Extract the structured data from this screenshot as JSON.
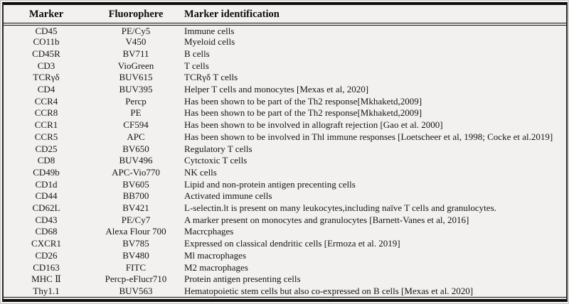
{
  "colors": {
    "background": "#f2f1ef",
    "rule": "#0e0e0e",
    "text": "#151515",
    "outer_edge": "#c6c5c3"
  },
  "table": {
    "columns": [
      {
        "key": "marker",
        "label": "Marker",
        "align": "center"
      },
      {
        "key": "fluorophore",
        "label": "Fluorophere",
        "align": "center"
      },
      {
        "key": "identification",
        "label": "Marker identification",
        "align": "left"
      }
    ],
    "rows": [
      {
        "marker": "CD45",
        "fluorophore": "PE/Cy5",
        "identification": "Immune cells"
      },
      {
        "marker": "CO11b",
        "fluorophore": "V450",
        "identification": "Myeloid cells"
      },
      {
        "marker": "CD45R",
        "fluorophore": "BV711",
        "identification": "B cells"
      },
      {
        "marker": "CD3",
        "fluorophore": "VioGreen",
        "identification": "T cells"
      },
      {
        "marker": "TCRγδ",
        "fluorophore": "BUV615",
        "identification": "TCRγδ T cells"
      },
      {
        "marker": "CD4",
        "fluorophore": "BUV395",
        "identification": "Helper T cells and monocytes [Mexas et al, 2020]"
      },
      {
        "marker": "CCR4",
        "fluorophore": "Percp",
        "identification": "Has been shown to be part of the Th2 response[Mkhaketd,2009]"
      },
      {
        "marker": "CCR8",
        "fluorophore": "PE",
        "identification": "Has been shown to be part of the Th2 response[Mkhaketd,2009]"
      },
      {
        "marker": "CCR1",
        "fluorophore": "CF594",
        "identification": "Has been shown to be involved in allograft rejection [Gao et al. 2000]"
      },
      {
        "marker": "CCR5",
        "fluorophore": "APC",
        "identification": "Has been shown to be involved in Thl immune responses [Loetscheer et al, 1998; Cocke et al.2019]"
      },
      {
        "marker": "CD25",
        "fluorophore": "BV650",
        "identification": "Regulatory T cells"
      },
      {
        "marker": "CD8",
        "fluorophore": "BUV496",
        "identification": "Cytctoxic T cells"
      },
      {
        "marker": "CD49b",
        "fluorophore": "APC-Vio770",
        "identification": "NK cells"
      },
      {
        "marker": "CD1d",
        "fluorophore": "BV605",
        "identification": "Lipid and non-protein antigen precenting cells"
      },
      {
        "marker": "CD44",
        "fluorophore": "BB700",
        "identification": "Activated immune cells"
      },
      {
        "marker": "CD62L",
        "fluorophore": "BV421",
        "identification": "L-selectin.lt is present on many leukocytes,including naïve T cells and granulocytes."
      },
      {
        "marker": "CD43",
        "fluorophore": "PE/Cy7",
        "identification": "A marker present on monocytes and granulocytes [Barnett-Vanes et al, 2016]"
      },
      {
        "marker": "CD68",
        "fluorophore": "Alexa Flour 700",
        "identification": "Macrcphages"
      },
      {
        "marker": "CXCR1",
        "fluorophore": "BV785",
        "identification": "Expressed on classical dendritic cells [Ermoza et al. 2019]"
      },
      {
        "marker": "CD26",
        "fluorophore": "BV480",
        "identification": "Ml macrophages"
      },
      {
        "marker": "CD163",
        "fluorophore": "FITC",
        "identification": "M2 macrophages"
      },
      {
        "marker": "MHC Ⅱ",
        "fluorophore": "Percp-eFlucr710",
        "identification": "Protein antigen presenting cells"
      },
      {
        "marker": "Thy1.1",
        "fluorophore": "BUV563",
        "identification": "Hematopoietic stem cells but also co-expressed on B cells [Mexas et al. 2020]"
      }
    ]
  },
  "chart_data": {
    "type": "table",
    "title": "",
    "columns": [
      "Marker",
      "Fluorophere",
      "Marker identification"
    ],
    "rows": [
      [
        "CD45",
        "PE/Cy5",
        "Immune cells"
      ],
      [
        "CO11b",
        "V450",
        "Myeloid cells"
      ],
      [
        "CD45R",
        "BV711",
        "B cells"
      ],
      [
        "CD3",
        "VioGreen",
        "T cells"
      ],
      [
        "TCRγδ",
        "BUV615",
        "TCRγδ T cells"
      ],
      [
        "CD4",
        "BUV395",
        "Helper T cells and monocytes [Mexas et al, 2020]"
      ],
      [
        "CCR4",
        "Percp",
        "Has been shown to be part of the Th2 response[Mkhaketd,2009]"
      ],
      [
        "CCR8",
        "PE",
        "Has been shown to be part of the Th2 response[Mkhaketd,2009]"
      ],
      [
        "CCR1",
        "CF594",
        "Has been shown to be involved in allograft rejection [Gao et al. 2000]"
      ],
      [
        "CCR5",
        "APC",
        "Has been shown to be involved in Thl immune responses [Loetscheer et al, 1998; Cocke et al.2019]"
      ],
      [
        "CD25",
        "BV650",
        "Regulatory T cells"
      ],
      [
        "CD8",
        "BUV496",
        "Cytctoxic T cells"
      ],
      [
        "CD49b",
        "APC-Vio770",
        "NK cells"
      ],
      [
        "CD1d",
        "BV605",
        "Lipid and non-protein antigen precenting cells"
      ],
      [
        "CD44",
        "BB700",
        "Activated immune cells"
      ],
      [
        "CD62L",
        "BV421",
        "L-selectin.lt is present on many leukocytes,including naïve T cells and granulocytes."
      ],
      [
        "CD43",
        "PE/Cy7",
        "A marker present on monocytes and granulocytes [Barnett-Vanes et al, 2016]"
      ],
      [
        "CD68",
        "Alexa Flour 700",
        "Macrcphages"
      ],
      [
        "CXCR1",
        "BV785",
        "Expressed on classical dendritic cells [Ermoza et al. 2019]"
      ],
      [
        "CD26",
        "BV480",
        "Ml macrophages"
      ],
      [
        "CD163",
        "FITC",
        "M2 macrophages"
      ],
      [
        "MHC Ⅱ",
        "Percp-eFlucr710",
        "Protein antigen presenting cells"
      ],
      [
        "Thy1.1",
        "BUV563",
        "Hematopoietic stem cells but also co-expressed on B cells [Mexas et al. 2020]"
      ]
    ]
  }
}
